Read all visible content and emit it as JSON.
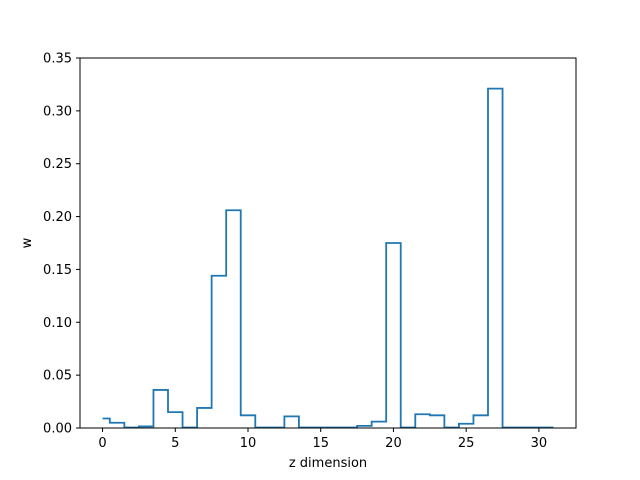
{
  "chart_data": {
    "type": "line",
    "style": "step-mid",
    "title": "",
    "xlabel": "z dimension",
    "ylabel": "w",
    "xlim": [
      -1.55,
      32.55
    ],
    "ylim": [
      0.0,
      0.35
    ],
    "xticks": [
      0,
      5,
      10,
      15,
      20,
      25,
      30
    ],
    "xtick_labels": [
      "0",
      "5",
      "10",
      "15",
      "20",
      "25",
      "30"
    ],
    "yticks": [
      0.0,
      0.05,
      0.1,
      0.15,
      0.2,
      0.25,
      0.3,
      0.35
    ],
    "ytick_labels": [
      "0.00",
      "0.05",
      "0.10",
      "0.15",
      "0.20",
      "0.25",
      "0.30",
      "0.35"
    ],
    "grid": false,
    "legend": "none",
    "series": [
      {
        "color": "#1f77b4",
        "x": [
          0,
          1,
          2,
          3,
          4,
          5,
          6,
          7,
          8,
          9,
          10,
          11,
          12,
          13,
          14,
          15,
          16,
          17,
          18,
          19,
          20,
          21,
          22,
          23,
          24,
          25,
          26,
          27,
          28,
          29,
          30,
          31
        ],
        "values": [
          0.009,
          0.005,
          0.0005,
          0.0015,
          0.036,
          0.015,
          0.0005,
          0.019,
          0.144,
          0.206,
          0.012,
          0.0005,
          0.0005,
          0.011,
          0.0005,
          0.0005,
          0.0005,
          0.0005,
          0.002,
          0.006,
          0.175,
          0.0005,
          0.013,
          0.012,
          0.0005,
          0.004,
          0.012,
          0.321,
          0.0005,
          0.0005,
          0.0005,
          0.0005
        ]
      }
    ]
  }
}
